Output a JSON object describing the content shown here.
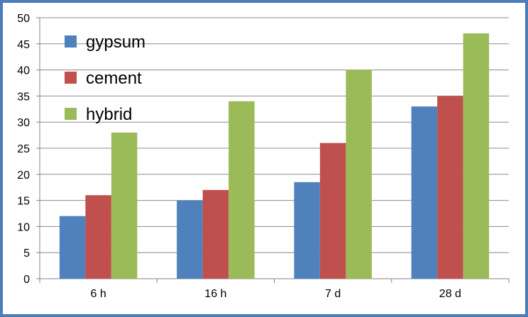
{
  "chart_data": {
    "type": "bar",
    "title": "",
    "xlabel": "",
    "ylabel": "",
    "categories": [
      "6 h",
      "16 h",
      "7 d",
      "28 d"
    ],
    "series": [
      {
        "name": "gypsum",
        "color": "#4f81bd",
        "values": [
          12,
          15,
          18.5,
          33
        ]
      },
      {
        "name": "cement",
        "color": "#c0504d",
        "values": [
          16,
          17,
          26,
          35
        ]
      },
      {
        "name": "hybrid",
        "color": "#9bbb59",
        "values": [
          28,
          34,
          40,
          47
        ]
      }
    ],
    "ylim": [
      0,
      50
    ],
    "yticks": [
      0,
      5,
      10,
      15,
      20,
      25,
      30,
      35,
      40,
      45,
      50
    ],
    "grid": true,
    "legend_position": "top-left"
  }
}
